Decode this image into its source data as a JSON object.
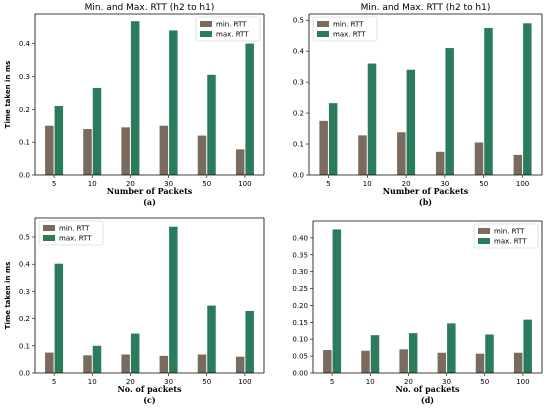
{
  "colors": {
    "min_rtt": "#7b6a5e",
    "max_rtt": "#2a7c5c"
  },
  "chart_data": [
    {
      "type": "bar",
      "title": "Min. and Max. RTT (h2 to h1)",
      "xlabel": "Number of Packets",
      "ylabel": "Time taken in ms",
      "caption": "(a)",
      "categories": [
        "5",
        "10",
        "20",
        "30",
        "50",
        "100"
      ],
      "ylim": [
        0,
        0.49
      ],
      "yticks": [
        "0.0",
        "0.1",
        "0.2",
        "0.3",
        "0.4"
      ],
      "legend_position": "top-right",
      "series": [
        {
          "name": "min. RTT",
          "values": [
            0.15,
            0.14,
            0.145,
            0.15,
            0.12,
            0.078
          ]
        },
        {
          "name": "max. RTT",
          "values": [
            0.21,
            0.265,
            0.468,
            0.44,
            0.305,
            0.4
          ]
        }
      ]
    },
    {
      "type": "bar",
      "title": "Min. and Max. RTT (h2 to h1)",
      "xlabel": "Number of Packets",
      "ylabel": "",
      "caption": "(b)",
      "categories": [
        "5",
        "10",
        "20",
        "30",
        "50",
        "100"
      ],
      "ylim": [
        0,
        0.52
      ],
      "yticks": [
        "0.0",
        "0.1",
        "0.2",
        "0.3",
        "0.4",
        "0.5"
      ],
      "legend_position": "top-left",
      "series": [
        {
          "name": "min. RTT",
          "values": [
            0.175,
            0.128,
            0.138,
            0.075,
            0.105,
            0.065
          ]
        },
        {
          "name": "max. RTT",
          "values": [
            0.232,
            0.36,
            0.34,
            0.41,
            0.475,
            0.49
          ]
        }
      ]
    },
    {
      "type": "bar",
      "title": "",
      "xlabel": "No. of packets",
      "ylabel": "Time taken in ms",
      "caption": "(c)",
      "categories": [
        "5",
        "10",
        "20",
        "30",
        "50",
        "100"
      ],
      "ylim": [
        0,
        0.57
      ],
      "yticks": [
        "0.0",
        "0.1",
        "0.2",
        "0.3",
        "0.4",
        "0.5"
      ],
      "legend_position": "top-left",
      "series": [
        {
          "name": "min. RTT",
          "values": [
            0.075,
            0.065,
            0.068,
            0.063,
            0.068,
            0.06
          ]
        },
        {
          "name": "max. RTT",
          "values": [
            0.402,
            0.1,
            0.145,
            0.538,
            0.248,
            0.228
          ]
        }
      ]
    },
    {
      "type": "bar",
      "title": "",
      "xlabel": "No. of packets",
      "ylabel": "",
      "caption": "(d)",
      "categories": [
        "5",
        "10",
        "20",
        "30",
        "50",
        "100"
      ],
      "ylim": [
        0,
        0.45
      ],
      "yticks": [
        "0.00",
        "0.05",
        "0.10",
        "0.15",
        "0.20",
        "0.25",
        "0.30",
        "0.35",
        "0.40"
      ],
      "legend_position": "top-right",
      "series": [
        {
          "name": "min. RTT",
          "values": [
            0.068,
            0.066,
            0.07,
            0.06,
            0.057,
            0.06
          ]
        },
        {
          "name": "max. RTT",
          "values": [
            0.425,
            0.112,
            0.118,
            0.147,
            0.114,
            0.158
          ]
        }
      ]
    }
  ]
}
